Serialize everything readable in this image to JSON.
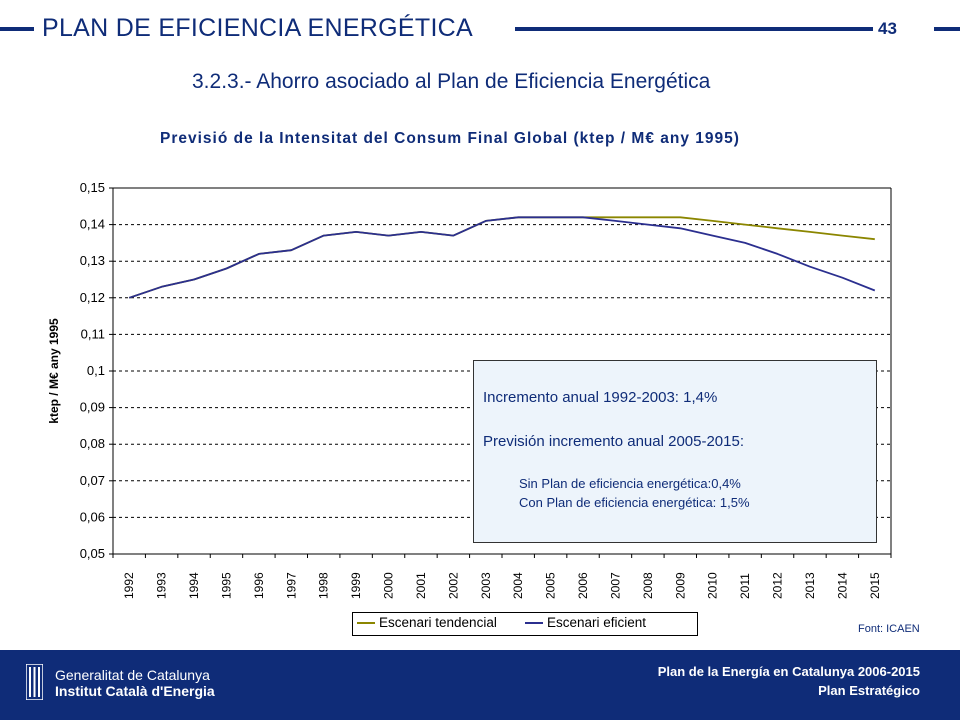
{
  "header": {
    "title": "PLAN DE EFICIENCIA ENERGÉTICA",
    "page_number": "43"
  },
  "subtitle": "3.2.3.- Ahorro asociado al Plan de Eficiencia Energética",
  "infobox": {
    "line1": "Incremento anual 1992-2003: 1,4%",
    "line2": "Previsión incremento anual 2005-2015:",
    "line3": "Sin Plan de eficiencia energética:0,4%",
    "line4": "Con Plan de eficiencia energética: 1,5%"
  },
  "source": "Font: ICAEN",
  "footer": {
    "org_line1": "Generalitat de Catalunya",
    "org_line2": "Institut Català d'Energia",
    "doc_line1": "Plan de la Energía en Catalunya 2006-2015",
    "doc_line2": "Plan Estratégico"
  },
  "colors": {
    "brand": "#0f2c78",
    "tendencial": "#8b8600",
    "eficient": "#2b2f8f"
  },
  "chart_data": {
    "type": "line",
    "title": "Previsió de la Intensitat del Consum Final Global (ktep / M€ any 1995)",
    "ylabel": "ktep / M€ any 1995",
    "xlabel": "",
    "ylim": [
      0.05,
      0.15
    ],
    "yticks": [
      "0,05",
      "0,06",
      "0,07",
      "0,08",
      "0,09",
      "0,1",
      "0,11",
      "0,12",
      "0,13",
      "0,14",
      "0,15"
    ],
    "ytick_values": [
      0.05,
      0.06,
      0.07,
      0.08,
      0.09,
      0.1,
      0.11,
      0.12,
      0.13,
      0.14,
      0.15
    ],
    "grid": "horizontal dashed",
    "legend": "bottom",
    "x": [
      "1992",
      "1993",
      "1994",
      "1995",
      "1996",
      "1997",
      "1998",
      "1999",
      "2000",
      "2001",
      "2002",
      "2003",
      "2004",
      "2005",
      "2006",
      "2007",
      "2008",
      "2009",
      "2010",
      "2011",
      "2012",
      "2013",
      "2014",
      "2015"
    ],
    "series": [
      {
        "name": "Escenari tendencial",
        "color": "#8b8600",
        "values": [
          0.12,
          0.123,
          0.125,
          0.128,
          0.132,
          0.133,
          0.137,
          0.138,
          0.137,
          0.138,
          0.137,
          0.141,
          0.142,
          0.142,
          0.142,
          0.142,
          0.142,
          0.142,
          0.141,
          0.14,
          0.139,
          0.138,
          0.137,
          0.136
        ]
      },
      {
        "name": "Escenari eficient",
        "color": "#2b2f8f",
        "values": [
          0.12,
          0.123,
          0.125,
          0.128,
          0.132,
          0.133,
          0.137,
          0.138,
          0.137,
          0.138,
          0.137,
          0.141,
          0.142,
          0.142,
          0.142,
          0.141,
          0.14,
          0.139,
          0.137,
          0.135,
          0.132,
          0.1285,
          0.1255,
          0.122
        ]
      }
    ]
  }
}
